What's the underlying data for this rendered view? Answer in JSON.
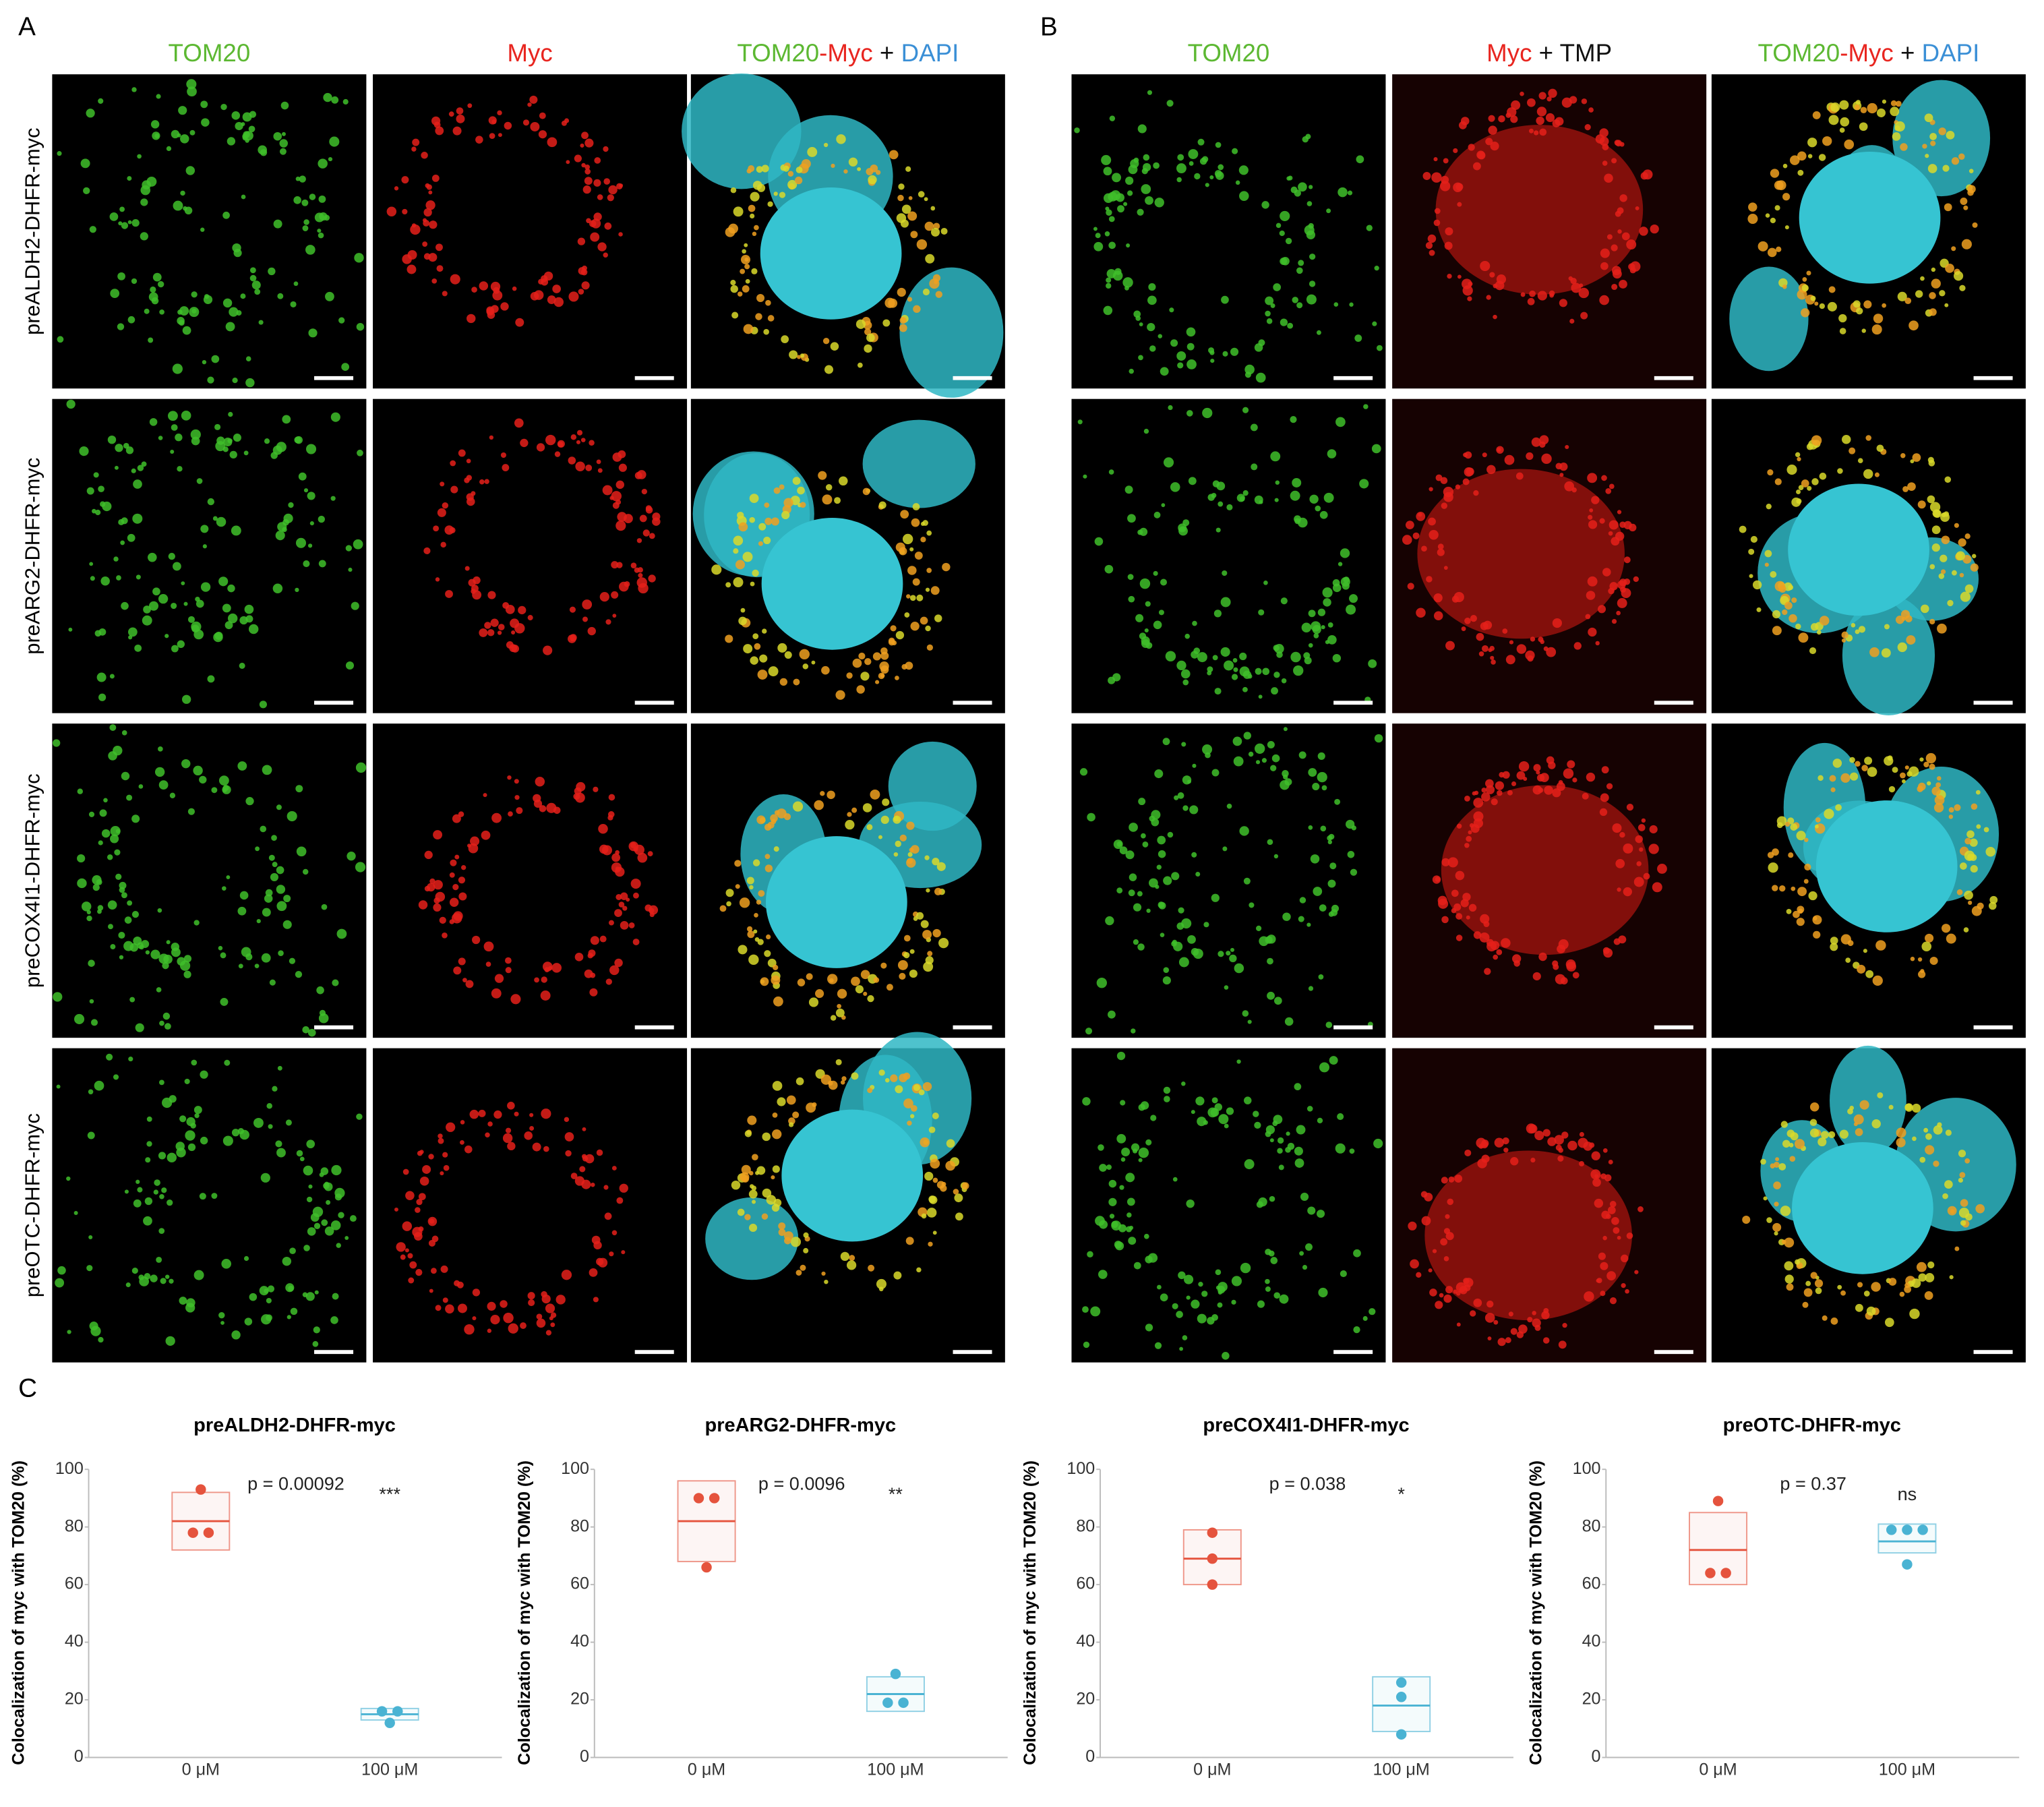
{
  "figure": {
    "panel_labels": [
      "A",
      "B",
      "C"
    ],
    "panel_A": {
      "headers": [
        [
          {
            "text": "TOM20",
            "color": "#5cb832"
          }
        ],
        [
          {
            "text": "Myc",
            "color": "#e8251f"
          }
        ],
        [
          {
            "text": "TOM20",
            "color": "#5cb832"
          },
          {
            "text": "-Myc",
            "color": "#e8251f"
          },
          {
            "text": " + ",
            "color": "#111111"
          },
          {
            "text": "DAPI",
            "color": "#3a8fd6"
          }
        ]
      ],
      "rows": [
        "preALDH2-DHFR-myc",
        "preARG2-DHFR-myc",
        "preCOX4I1-DHFR-myc",
        "preOTC-DHFR-myc"
      ]
    },
    "panel_B": {
      "headers": [
        [
          {
            "text": "TOM20",
            "color": "#5cb832"
          }
        ],
        [
          {
            "text": "Myc",
            "color": "#e8251f"
          },
          {
            "text": " + TMP",
            "color": "#111111"
          }
        ],
        [
          {
            "text": "TOM20",
            "color": "#5cb832"
          },
          {
            "text": "-Myc",
            "color": "#e8251f"
          },
          {
            "text": " + ",
            "color": "#111111"
          },
          {
            "text": "DAPI",
            "color": "#3a8fd6"
          }
        ]
      ]
    }
  },
  "chart_data": [
    {
      "type": "dotbox",
      "title": "preALDH2-DHFR-myc",
      "ylabel": "Colocalization of myc with TOM20 (%)",
      "categories": [
        "0 μM",
        "100 μM"
      ],
      "ylim": [
        0,
        100
      ],
      "yticks": [
        0,
        20,
        40,
        60,
        80,
        100
      ],
      "p_label": "p = 0.00092",
      "significance": "***",
      "groups": [
        {
          "color": "#e5533d",
          "points": [
            93,
            78,
            78
          ],
          "mean": 82,
          "low": 72,
          "high": 92
        },
        {
          "color": "#4ab3d3",
          "points": [
            16,
            16,
            12
          ],
          "mean": 15,
          "low": 13,
          "high": 17
        }
      ]
    },
    {
      "type": "dotbox",
      "title": "preARG2-DHFR-myc",
      "ylabel": "Colocalization of myc with TOM20 (%)",
      "categories": [
        "0 μM",
        "100 μM"
      ],
      "ylim": [
        0,
        100
      ],
      "yticks": [
        0,
        20,
        40,
        60,
        80,
        100
      ],
      "p_label": "p = 0.0096",
      "significance": "**",
      "groups": [
        {
          "color": "#e5533d",
          "points": [
            90,
            90,
            66
          ],
          "mean": 82,
          "low": 68,
          "high": 96
        },
        {
          "color": "#4ab3d3",
          "points": [
            29,
            19,
            19
          ],
          "mean": 22,
          "low": 16,
          "high": 28
        }
      ]
    },
    {
      "type": "dotbox",
      "title": "preCOX4I1-DHFR-myc",
      "ylabel": "Colocalization of myc with TOM20 (%)",
      "categories": [
        "0 μM",
        "100 μM"
      ],
      "ylim": [
        0,
        100
      ],
      "yticks": [
        0,
        20,
        40,
        60,
        80,
        100
      ],
      "p_label": "p = 0.038",
      "significance": "*",
      "groups": [
        {
          "color": "#e5533d",
          "points": [
            78,
            69,
            60
          ],
          "mean": 69,
          "low": 60,
          "high": 79
        },
        {
          "color": "#4ab3d3",
          "points": [
            26,
            21,
            8
          ],
          "mean": 18,
          "low": 9,
          "high": 28
        }
      ]
    },
    {
      "type": "dotbox",
      "title": "preOTC-DHFR-myc",
      "ylabel": "Colocalization of myc with TOM20 (%)",
      "categories": [
        "0 μM",
        "100 μM"
      ],
      "ylim": [
        0,
        100
      ],
      "yticks": [
        0,
        20,
        40,
        60,
        80,
        100
      ],
      "p_label": "p = 0.37",
      "significance": "ns",
      "groups": [
        {
          "color": "#e5533d",
          "points": [
            89,
            64,
            64
          ],
          "mean": 72,
          "low": 60,
          "high": 85
        },
        {
          "color": "#4ab3d3",
          "points": [
            79,
            79,
            79,
            67
          ],
          "mean": 75,
          "low": 71,
          "high": 81
        }
      ]
    }
  ]
}
